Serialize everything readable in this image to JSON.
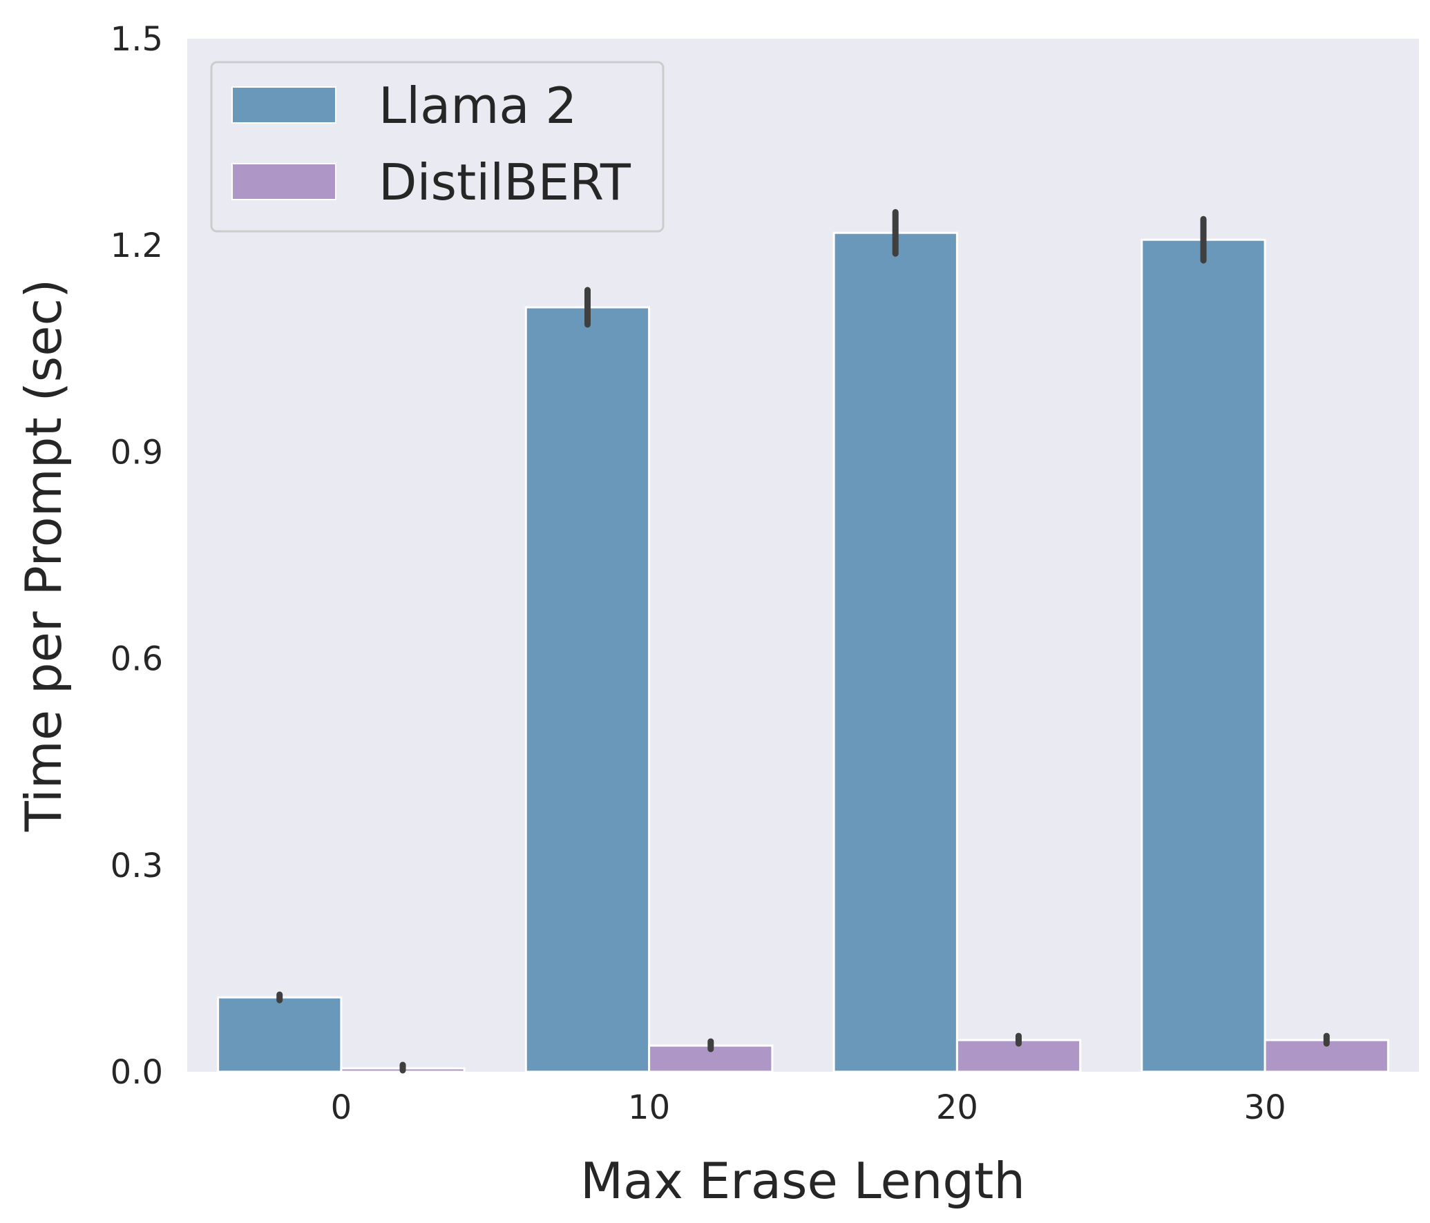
{
  "chart_data": {
    "type": "bar",
    "title": "",
    "xlabel": "Max Erase Length",
    "ylabel": "Time per Prompt (sec)",
    "categories": [
      "0",
      "10",
      "20",
      "30"
    ],
    "ylim": [
      0,
      1.5
    ],
    "yticks": [
      "0.0",
      "0.3",
      "0.6",
      "0.9",
      "1.2",
      "1.5"
    ],
    "grid": false,
    "legend_position": "top-left",
    "background_color": "#eaeaf2",
    "series": [
      {
        "name": "Llama 2",
        "color": "#6a98bb",
        "values": [
          0.108,
          1.11,
          1.218,
          1.208
        ],
        "err_low": [
          0.104,
          1.085,
          1.188,
          1.178
        ],
        "err_high": [
          0.112,
          1.135,
          1.248,
          1.238
        ]
      },
      {
        "name": "DistilBERT",
        "color": "#ae96c6",
        "values": [
          0.005,
          0.038,
          0.046,
          0.046
        ],
        "err_low": [
          0.002,
          0.033,
          0.041,
          0.041
        ],
        "err_high": [
          0.01,
          0.044,
          0.052,
          0.052
        ]
      }
    ]
  }
}
